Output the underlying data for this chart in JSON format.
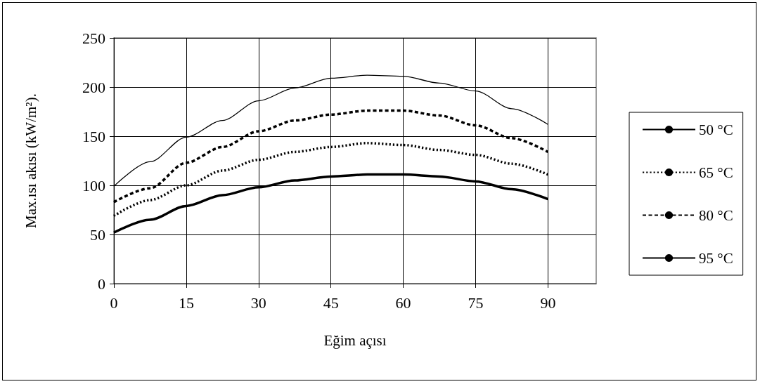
{
  "chart_data": {
    "type": "line",
    "xlabel": "Eğim açısı",
    "ylabel": "Max.ısı akısı (kW/m²).",
    "x": [
      0,
      7.5,
      15,
      22.5,
      30,
      37.5,
      45,
      52.5,
      60,
      67.5,
      75,
      82.5,
      90
    ],
    "xlim": [
      0,
      100
    ],
    "xticks": [
      0,
      15,
      30,
      45,
      60,
      75,
      90
    ],
    "ylim": [
      0,
      250
    ],
    "yticks": [
      0,
      50,
      100,
      150,
      200,
      250
    ],
    "grid": true,
    "legend": "right",
    "marker": "none",
    "series": [
      {
        "name": "50 °C",
        "color": "#000000",
        "line_style": "solid",
        "values": [
          52,
          65,
          79,
          90,
          98,
          105,
          109,
          111,
          111,
          109,
          104,
          96,
          86
        ]
      },
      {
        "name": "65 °C",
        "color": "#000000",
        "line_style": "dotted",
        "values": [
          69,
          85,
          100,
          115,
          126,
          134,
          139,
          143,
          141,
          136,
          131,
          122,
          111
        ]
      },
      {
        "name": "80 °C",
        "color": "#000000",
        "line_style": "dashed",
        "values": [
          83,
          97,
          123,
          139,
          155,
          166,
          172,
          176,
          176,
          171,
          161,
          148,
          134
        ]
      },
      {
        "name": "95 °C",
        "color": "#000000",
        "line_style": "solid",
        "values": [
          99,
          124,
          149,
          166,
          186,
          199,
          209,
          212,
          211,
          204,
          196,
          178,
          162
        ]
      }
    ]
  }
}
